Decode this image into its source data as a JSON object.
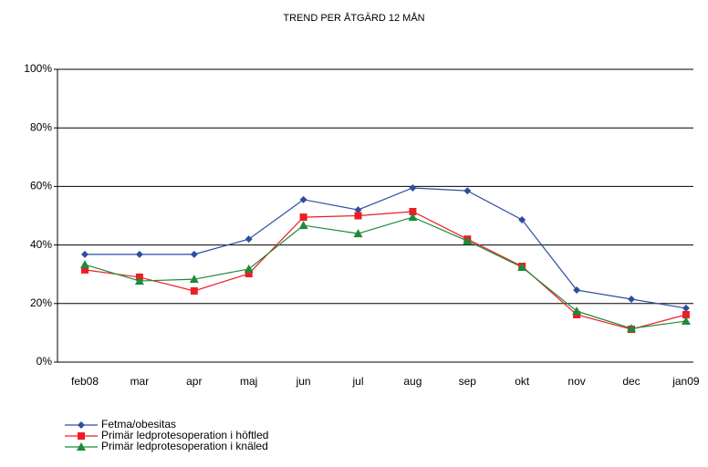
{
  "chart_data": {
    "type": "line",
    "title": "TREND PER ÅTGÄRD 12 MÅN",
    "categories": [
      "feb08",
      "mar",
      "apr",
      "maj",
      "jun",
      "jul",
      "aug",
      "sep",
      "okt",
      "nov",
      "dec",
      "jan09"
    ],
    "series": [
      {
        "name": "Fetma/obesitas",
        "color": "#2e4ea0",
        "marker": "diamond",
        "values": [
          36.8,
          36.8,
          36.8,
          42,
          55.5,
          52,
          59.5,
          58.5,
          48.6,
          24.6,
          21.5,
          18.4
        ]
      },
      {
        "name": "Primär ledprotesoperation i höftled",
        "color": "#ee1c24",
        "marker": "square",
        "values": [
          31.5,
          29,
          24.3,
          30.2,
          49.5,
          50,
          51.4,
          42,
          32.7,
          16.2,
          11.2,
          16.2
        ]
      },
      {
        "name": "Primär ledprotesoperation i knäled",
        "color": "#1e8a3a",
        "marker": "triangle",
        "values": [
          33.3,
          27.7,
          28.3,
          31.8,
          46.7,
          43.9,
          49.5,
          41.4,
          32.4,
          17.4,
          11.5,
          14
        ]
      }
    ],
    "ylim": [
      0,
      100
    ],
    "yticks": [
      {
        "value": 0,
        "label": "0%"
      },
      {
        "value": 20,
        "label": "20%"
      },
      {
        "value": 40,
        "label": "40%"
      },
      {
        "value": 60,
        "label": "60%"
      },
      {
        "value": 80,
        "label": "80%"
      },
      {
        "value": 100,
        "label": "100%"
      }
    ],
    "grid": true,
    "legend": "bottom-left"
  }
}
